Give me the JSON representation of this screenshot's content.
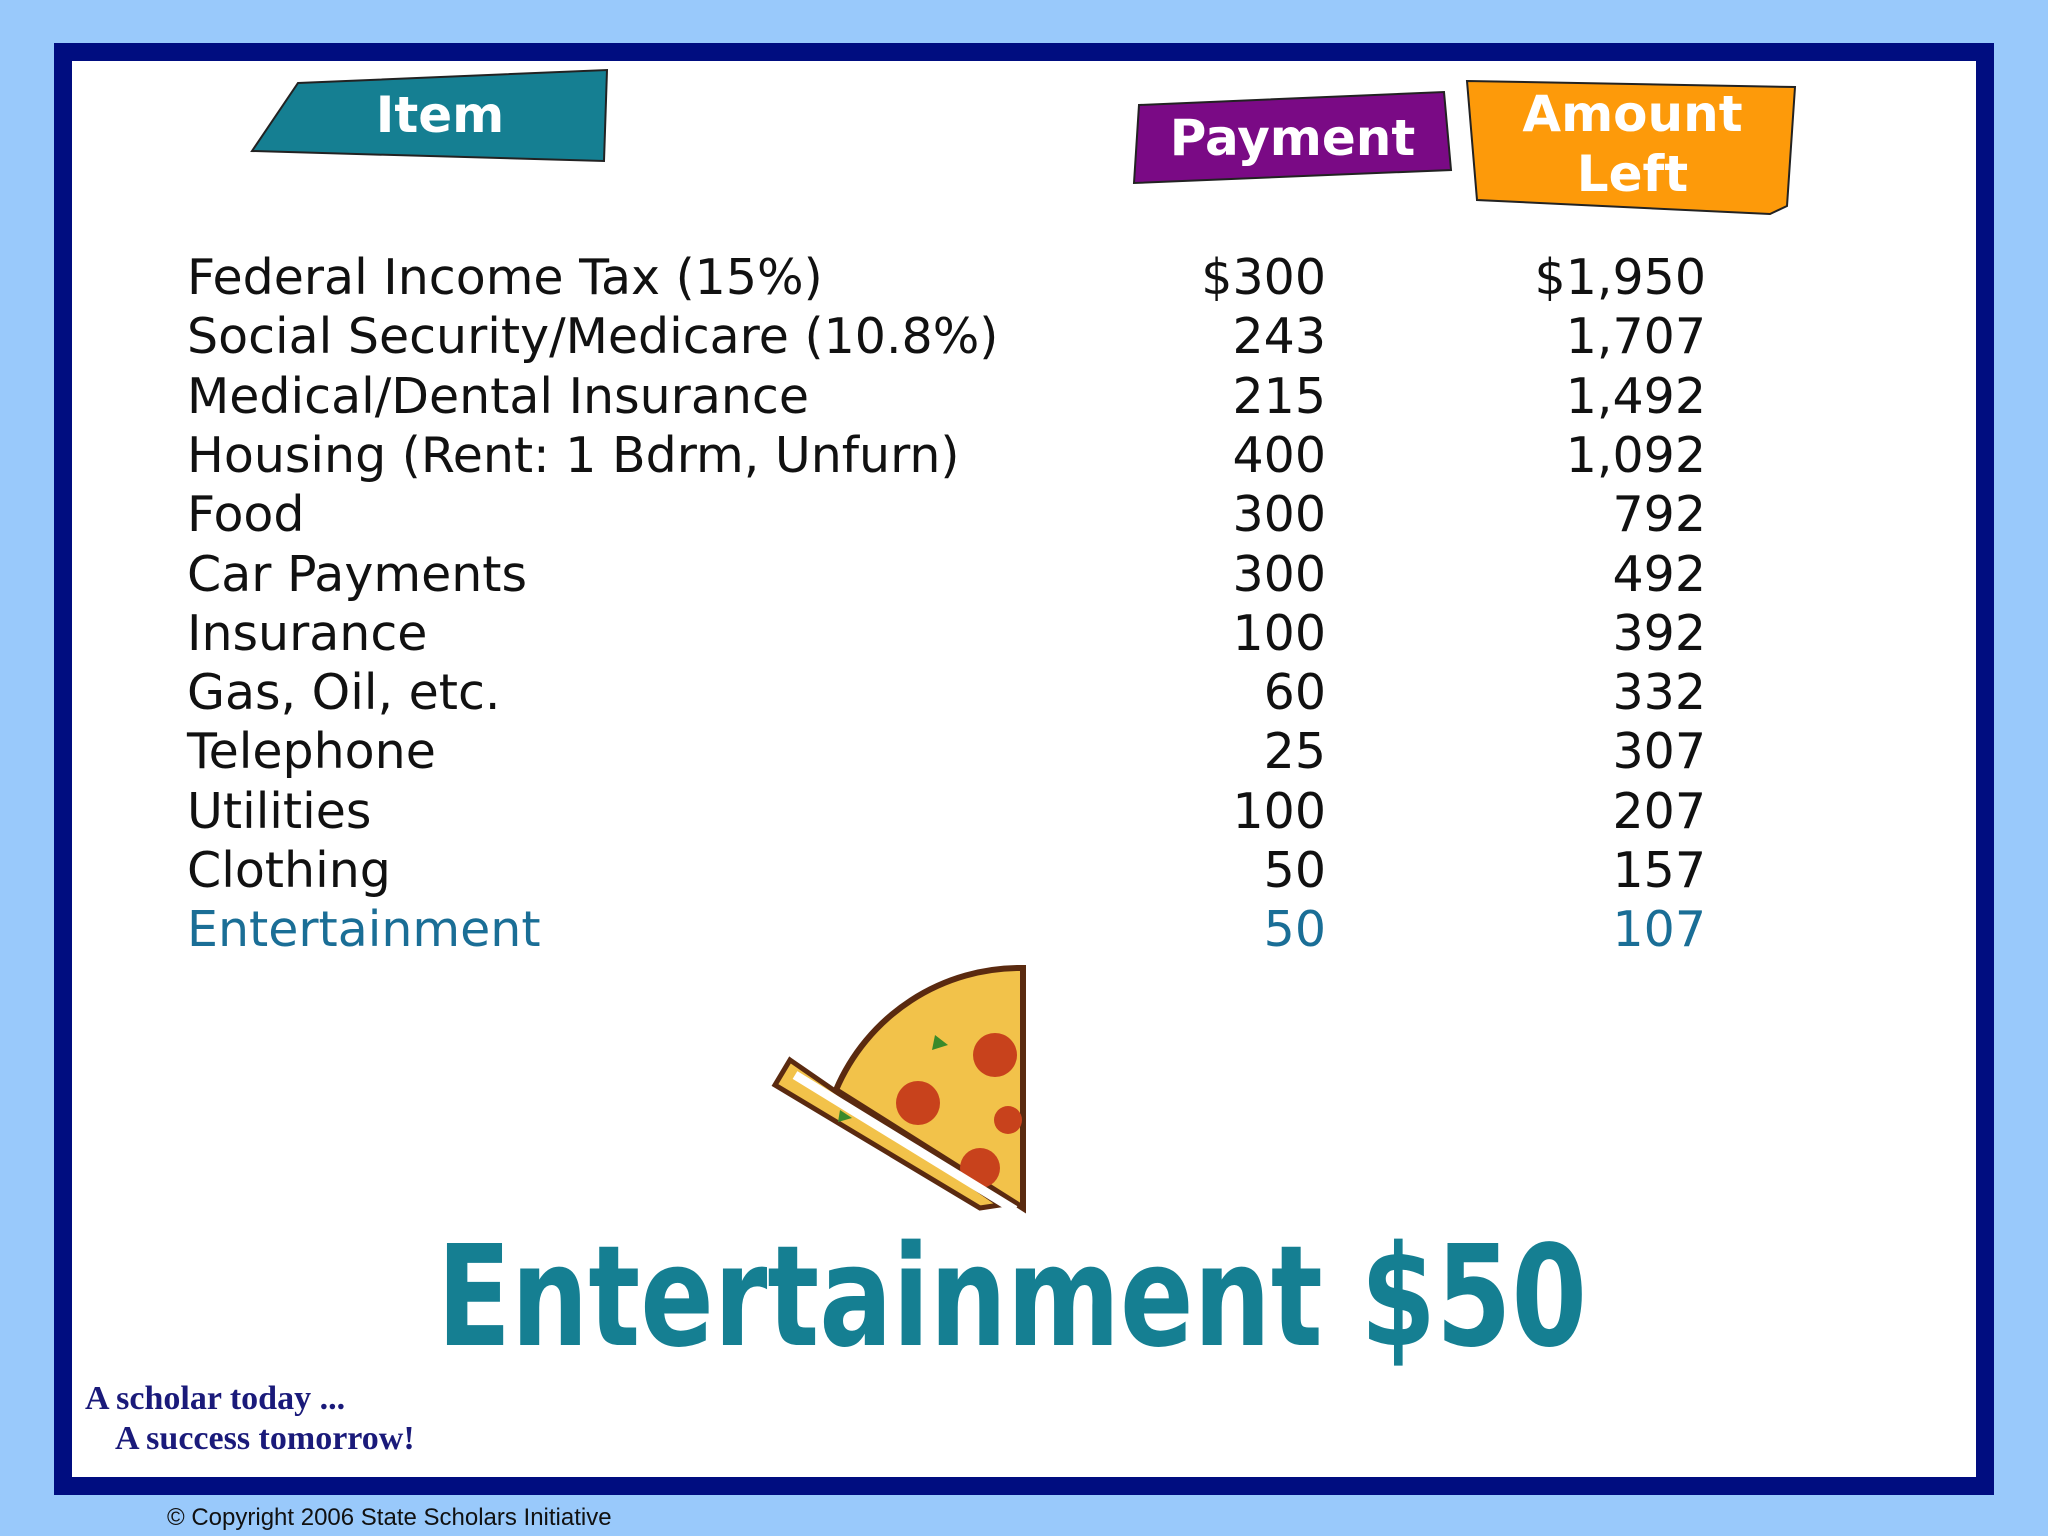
{
  "header": {
    "item": "Item",
    "payment": "Payment",
    "amount_left": "Amount Left"
  },
  "table": {
    "rows": [
      [
        "Federal Income Tax (15%)",
        "$300",
        "$1,950"
      ],
      [
        "Social Security/Medicare (10.8%)",
        "243",
        "1,707"
      ],
      [
        "Medical/Dental Insurance",
        "215",
        "1,492"
      ],
      [
        "Housing (Rent: 1 Bdrm, Unfurn)",
        "400",
        "1,092"
      ],
      [
        "Food",
        "300",
        "792"
      ],
      [
        "Car Payments",
        "300",
        "492"
      ],
      [
        "Insurance",
        "100",
        "392"
      ],
      [
        "Gas, Oil, etc.",
        "60",
        "332"
      ],
      [
        "Telephone",
        "25",
        "307"
      ],
      [
        "Utilities",
        "100",
        "207"
      ],
      [
        "Clothing",
        "50",
        "157"
      ],
      [
        "Entertainment",
        "50",
        "107"
      ]
    ]
  },
  "caption": "Entertainment $50",
  "motto": {
    "line1": "A scholar today ...",
    "line2": "A success tomorrow!"
  },
  "copyright": "© Copyright 2006 State Scholars Initiative"
}
